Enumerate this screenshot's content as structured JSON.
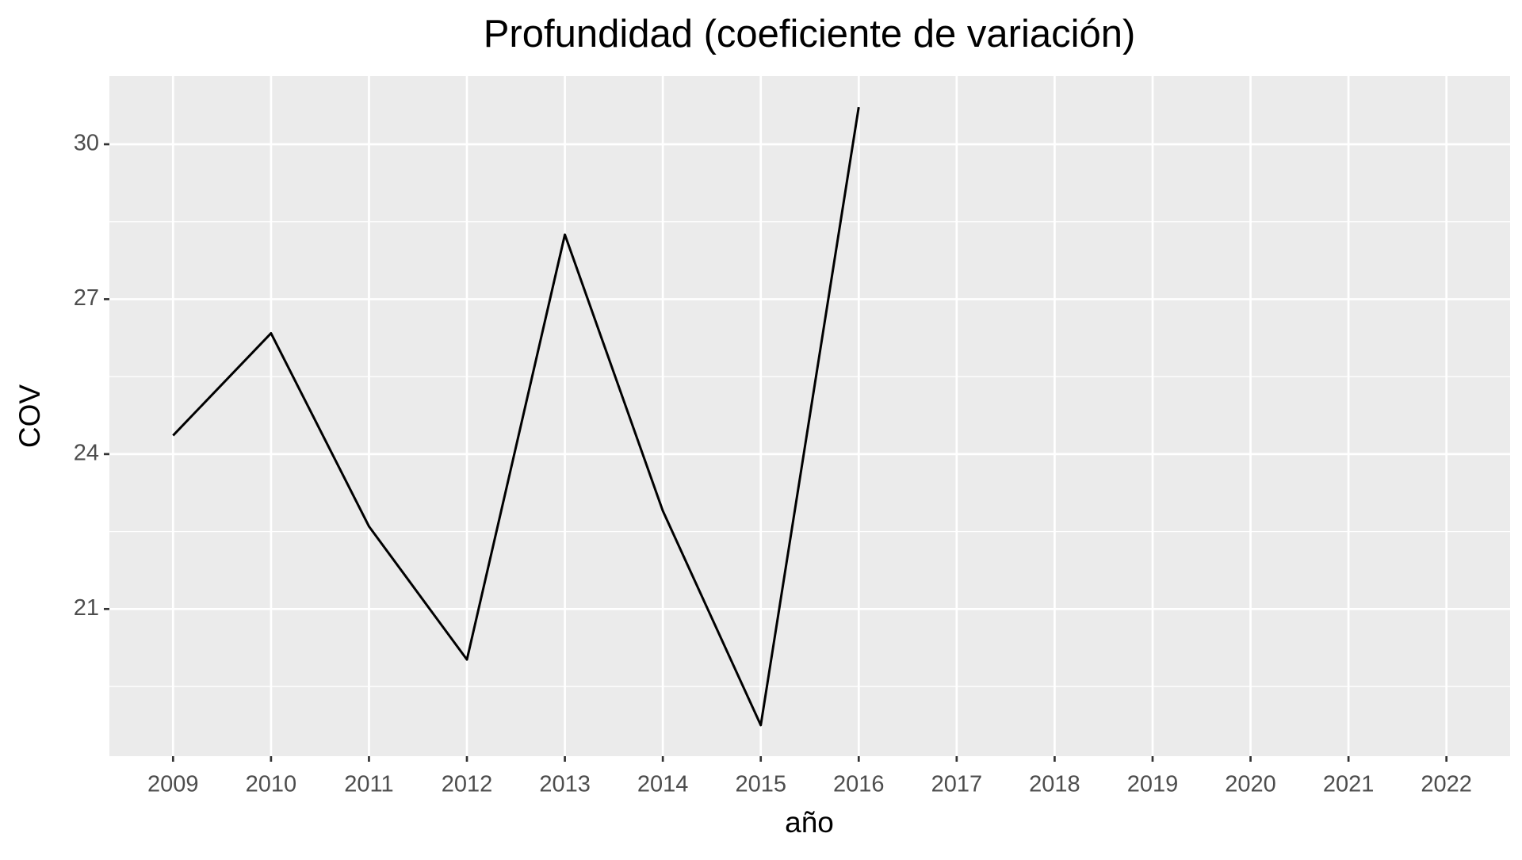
{
  "chart_data": {
    "type": "line",
    "title": "Profundidad (coeficiente de variación)",
    "x_label": "año",
    "y_label": "COV",
    "x": [
      2009,
      2010,
      2011,
      2012,
      2013,
      2014,
      2015,
      2016
    ],
    "series": [
      {
        "name": "COV",
        "color": "#000000",
        "values": [
          24.36,
          26.34,
          22.6,
          20.02,
          28.25,
          22.9,
          18.75,
          30.72
        ]
      }
    ],
    "xlim": [
      2008.35,
      2022.65
    ],
    "xticks": [
      2009,
      2010,
      2011,
      2012,
      2013,
      2014,
      2015,
      2016,
      2017,
      2018,
      2019,
      2020,
      2021,
      2022
    ],
    "ylim": [
      18.15,
      31.32
    ],
    "yticks": [
      21,
      24,
      27,
      30
    ],
    "grid": true
  }
}
